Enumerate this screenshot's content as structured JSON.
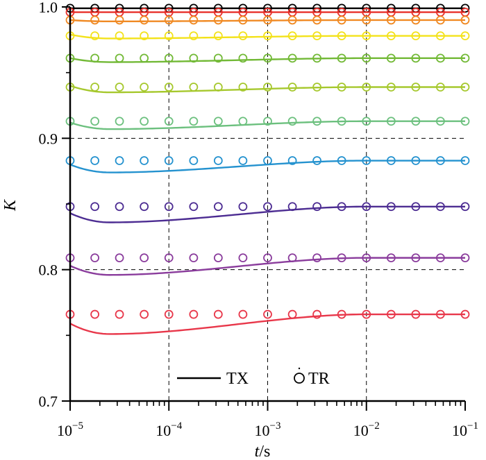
{
  "chart_data": {
    "type": "line",
    "title": "",
    "xlabel_italic": "t",
    "xlabel_suffix": "/s",
    "ylabel": "K",
    "xscale": "log",
    "xlim": [
      1e-05,
      0.1
    ],
    "ylim": [
      0.7,
      1.0
    ],
    "grid": "dashed, at x decades and y = 0.8, 0.9",
    "x_tick_labels": [
      {
        "x": 1e-05,
        "base": "10",
        "exp": "−5"
      },
      {
        "x": 0.0001,
        "base": "10",
        "exp": "−4"
      },
      {
        "x": 0.001,
        "base": "10",
        "exp": "−3"
      },
      {
        "x": 0.01,
        "base": "10",
        "exp": "−2"
      },
      {
        "x": 0.1,
        "base": "10",
        "exp": "−1"
      }
    ],
    "y_tick_labels": [
      {
        "y": 0.7,
        "label": "0.7"
      },
      {
        "y": 0.8,
        "label": "0.8"
      },
      {
        "y": 0.9,
        "label": "0.9"
      },
      {
        "y": 1.0,
        "label": "1.0"
      }
    ],
    "legend": {
      "placement": "bottom-center",
      "line_label": "TX",
      "marker_label": "TR"
    },
    "marker_x": [
      1e-05,
      1.78e-05,
      3.16e-05,
      5.62e-05,
      0.0001,
      0.000178,
      0.000316,
      0.000562,
      0.001,
      0.00178,
      0.00316,
      0.00562,
      0.01,
      0.0178,
      0.0316,
      0.0562,
      0.1
    ],
    "series": [
      {
        "name": "s1",
        "color": "#000000",
        "start": 0.999,
        "dip": 0.999,
        "end": 0.999,
        "markers": 0.999
      },
      {
        "name": "s2",
        "color": "#e8312b",
        "start": 0.996,
        "dip": 0.996,
        "end": 0.996,
        "markers": 0.996
      },
      {
        "name": "s3",
        "color": "#f08a24",
        "start": 0.99,
        "dip": 0.989,
        "end": 0.99,
        "markers": 0.99
      },
      {
        "name": "s4",
        "color": "#f3e21a",
        "start": 0.979,
        "dip": 0.976,
        "end": 0.978,
        "markers": 0.978
      },
      {
        "name": "s5",
        "color": "#72b936",
        "start": 0.961,
        "dip": 0.958,
        "end": 0.961,
        "markers": 0.961
      },
      {
        "name": "s6",
        "color": "#a6c82d",
        "start": 0.94,
        "dip": 0.935,
        "end": 0.939,
        "markers": 0.939
      },
      {
        "name": "s7",
        "color": "#6cc07e",
        "start": 0.912,
        "dip": 0.907,
        "end": 0.913,
        "markers": 0.913
      },
      {
        "name": "s8",
        "color": "#2492cf",
        "start": 0.88,
        "dip": 0.874,
        "end": 0.883,
        "markers": 0.883
      },
      {
        "name": "s9",
        "color": "#4c2c92",
        "start": 0.843,
        "dip": 0.836,
        "end": 0.848,
        "markers": 0.848
      },
      {
        "name": "s10",
        "color": "#8a3c9c",
        "start": 0.803,
        "dip": 0.796,
        "end": 0.809,
        "markers": 0.809
      },
      {
        "name": "s11",
        "color": "#e8374a",
        "start": 0.759,
        "dip": 0.751,
        "end": 0.766,
        "markers": 0.766
      }
    ]
  }
}
